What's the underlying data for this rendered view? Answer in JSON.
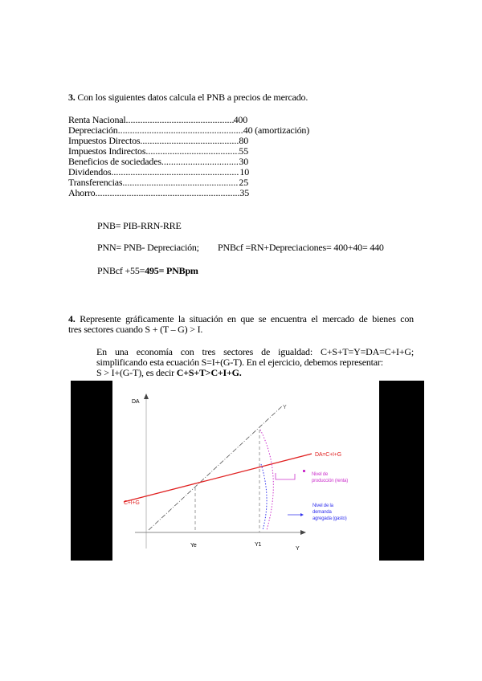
{
  "exercise3": {
    "number": "3.",
    "question": "Con los siguientes datos calcula el PNB a precios de mercado.",
    "data": [
      {
        "label": "Renta Nacional",
        "value": "400"
      },
      {
        "label": "Depreciación",
        "value": "40 (amortización)"
      },
      {
        "label": "Impuestos Directos",
        "value": "80"
      },
      {
        "label": "Impuestos Indirectos",
        "value": "55"
      },
      {
        "label": "Beneficios de sociedades",
        "value": "30"
      },
      {
        "label": "Dividendos",
        "value": "10"
      },
      {
        "label": "Transferencias",
        "value": "25"
      },
      {
        "label": "Ahorro",
        "value": "35"
      }
    ],
    "formula1": "PNB= PIB-RRN-RRE",
    "formula2a": "PNN= PNB- Depreciación;",
    "formula2b": "PNBcf =RN+Depreciaciones= 400+40= 440",
    "formula3_prefix": "PNBcf +55=",
    "formula3_bold": "495= PNBpm"
  },
  "exercise4": {
    "number": "4.",
    "question_line1": "Represente gráficamente la situación en que se encuentra el mercado de bienes con",
    "question_line2": "tres sectores cuando  S + (T – G) > I.",
    "answer_line1": "En una economía con tres sectores de igualdad: C+S+T=Y=DA=C+I+G;",
    "answer_line2": "simplificando esta ecuación S=I+(G-T). En el ejercicio, debemos representar:",
    "answer_line3_prefix": " S > I+(G-T), es decir ",
    "answer_line3_bold": "C+S+T>C+I+G."
  },
  "figure": {
    "y_axis_label": "DA",
    "x_axis_label": "Y",
    "line45_label": "Y",
    "da_line_label": "DA=C+I+G",
    "intercept_label": "C+I+G",
    "ye_label": "Ye",
    "y1_label": "Y1",
    "production_label_1": "Nivel de",
    "production_label_2": "producción (renta)",
    "demand_label_1": "Nivel de la",
    "demand_label_2": "demanda",
    "demand_label_3": "agregada (gasto)",
    "colors": {
      "da_line": "#e02020",
      "production": "#cc33cc",
      "demand": "#3333ee",
      "line45": "#555555"
    }
  }
}
